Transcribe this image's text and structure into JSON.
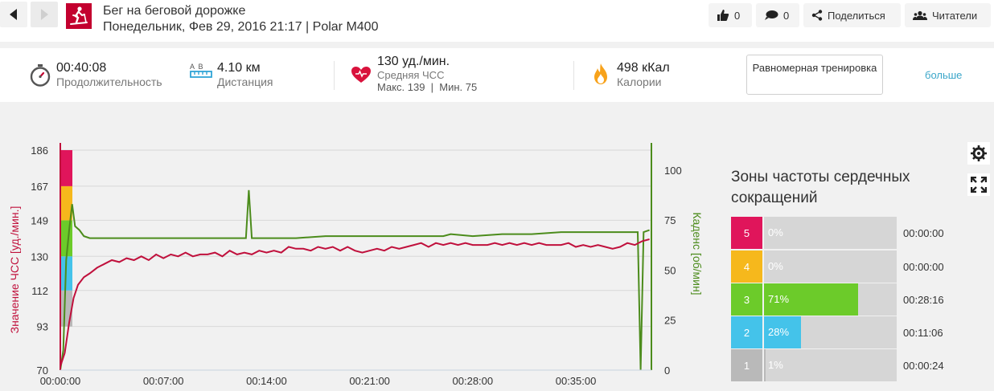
{
  "header": {
    "title": "Бег на беговой дорожке",
    "subtitle": "Понедельник, Фев 29, 2016 21:17 | Polar M400",
    "likes_count": "0",
    "comments_count": "0",
    "share_label": "Поделиться",
    "followers_label": "Читатели"
  },
  "summary": {
    "duration_value": "00:40:08",
    "duration_label": "Продолжительность",
    "distance_icon_text": "A  B",
    "distance_value": "4.10 км",
    "distance_label": "Дистанция",
    "hr_value": "130 уд./мин.",
    "hr_label": "Средняя ЧСС",
    "hr_minmax": "Макс. 139  |  Мин. 75",
    "calories_value": "498 кКал",
    "calories_label": "Калории",
    "workout_type": "Равномерная тренировка",
    "more_label": "больше"
  },
  "colors": {
    "heart_rate": "#c0103c",
    "cadence": "#4c8c1c",
    "zone5": "#e0155b",
    "zone4": "#f6b81c",
    "zone3": "#6ccb2a",
    "zone2": "#44c3ea",
    "zone1": "#b9b9b9"
  },
  "chart_data": {
    "type": "line",
    "xlabel": "",
    "x_ticks": [
      "00:00:00",
      "00:07:00",
      "00:14:00",
      "00:21:00",
      "00:28:00",
      "00:35:00"
    ],
    "x_tick_minutes": [
      0,
      7,
      14,
      21,
      28,
      35
    ],
    "x_range_minutes": [
      0,
      40.13
    ],
    "y_left": {
      "label": "Значение ЧСС [уд./мин.]",
      "ticks": [
        70,
        93,
        112,
        130,
        149,
        167,
        186
      ],
      "range": [
        70,
        186
      ]
    },
    "y_right": {
      "label": "Каденс [об/мин]",
      "ticks": [
        0,
        25,
        50,
        75,
        100
      ],
      "range": [
        0,
        110
      ]
    },
    "zone_band_bpm": [
      93,
      112,
      130,
      149,
      167,
      186
    ],
    "series": [
      {
        "name": "Значение ЧСС",
        "axis": "left",
        "points": [
          [
            0,
            72
          ],
          [
            0.3,
            79
          ],
          [
            0.6,
            95
          ],
          [
            0.9,
            108
          ],
          [
            1.2,
            115
          ],
          [
            1.6,
            119
          ],
          [
            2.0,
            121
          ],
          [
            2.5,
            124
          ],
          [
            3.0,
            126
          ],
          [
            3.5,
            128
          ],
          [
            4.0,
            127
          ],
          [
            4.5,
            129
          ],
          [
            5.0,
            128
          ],
          [
            5.5,
            130
          ],
          [
            6.0,
            128
          ],
          [
            6.5,
            131
          ],
          [
            7.0,
            129
          ],
          [
            7.5,
            131
          ],
          [
            8.0,
            130
          ],
          [
            8.5,
            132
          ],
          [
            9.0,
            130
          ],
          [
            9.5,
            131
          ],
          [
            10.0,
            131
          ],
          [
            10.5,
            132
          ],
          [
            11.0,
            130
          ],
          [
            11.5,
            133
          ],
          [
            12.0,
            131
          ],
          [
            12.5,
            132
          ],
          [
            13.0,
            131
          ],
          [
            13.5,
            133
          ],
          [
            14.0,
            132
          ],
          [
            14.5,
            133
          ],
          [
            15.0,
            132
          ],
          [
            15.5,
            135
          ],
          [
            16.0,
            134
          ],
          [
            16.5,
            134
          ],
          [
            17.0,
            133
          ],
          [
            17.5,
            135
          ],
          [
            18.0,
            134
          ],
          [
            18.5,
            135
          ],
          [
            19.0,
            133
          ],
          [
            19.5,
            135
          ],
          [
            20.0,
            133
          ],
          [
            20.5,
            132
          ],
          [
            21.0,
            133
          ],
          [
            21.5,
            134
          ],
          [
            22.0,
            133
          ],
          [
            22.5,
            135
          ],
          [
            23.0,
            134
          ],
          [
            23.5,
            135
          ],
          [
            24.0,
            136
          ],
          [
            24.5,
            137
          ],
          [
            25.0,
            135
          ],
          [
            25.5,
            137
          ],
          [
            26.0,
            136
          ],
          [
            26.5,
            137
          ],
          [
            27.0,
            136
          ],
          [
            27.5,
            137
          ],
          [
            28.0,
            136
          ],
          [
            28.5,
            136
          ],
          [
            29.0,
            136
          ],
          [
            29.5,
            137
          ],
          [
            30.0,
            136
          ],
          [
            30.5,
            137
          ],
          [
            31.0,
            136
          ],
          [
            31.5,
            137
          ],
          [
            32.0,
            136
          ],
          [
            32.5,
            137
          ],
          [
            33.0,
            136
          ],
          [
            33.5,
            136
          ],
          [
            34.0,
            136
          ],
          [
            34.5,
            137
          ],
          [
            35.0,
            135
          ],
          [
            35.5,
            136
          ],
          [
            36.0,
            135
          ],
          [
            36.5,
            136
          ],
          [
            37.0,
            135
          ],
          [
            37.5,
            134
          ],
          [
            38.0,
            135
          ],
          [
            38.5,
            137
          ],
          [
            39.0,
            136
          ],
          [
            39.5,
            138
          ],
          [
            40.0,
            139
          ]
        ]
      },
      {
        "name": "Каденс",
        "axis": "right",
        "points": [
          [
            0,
            0
          ],
          [
            0.2,
            10
          ],
          [
            0.4,
            55
          ],
          [
            0.6,
            70
          ],
          [
            0.8,
            83
          ],
          [
            1.0,
            72
          ],
          [
            1.3,
            70
          ],
          [
            1.6,
            67
          ],
          [
            2.0,
            66
          ],
          [
            4.0,
            66
          ],
          [
            6.0,
            66
          ],
          [
            8.0,
            66
          ],
          [
            10.0,
            66
          ],
          [
            12.0,
            66
          ],
          [
            12.6,
            66
          ],
          [
            12.8,
            90
          ],
          [
            13.0,
            66
          ],
          [
            14.0,
            66
          ],
          [
            16.0,
            66
          ],
          [
            18.0,
            67
          ],
          [
            20.0,
            67
          ],
          [
            22.0,
            67
          ],
          [
            24.0,
            67
          ],
          [
            26.0,
            67
          ],
          [
            26.5,
            68
          ],
          [
            28.0,
            67
          ],
          [
            30.0,
            68
          ],
          [
            32.0,
            68
          ],
          [
            34.0,
            69
          ],
          [
            36.0,
            69
          ],
          [
            38.0,
            69
          ],
          [
            39.2,
            69
          ],
          [
            39.4,
            0
          ],
          [
            39.6,
            69
          ],
          [
            40.0,
            70
          ]
        ]
      }
    ]
  },
  "zones": {
    "title": "Зоны частоты сердечных сокращений",
    "items": [
      {
        "num": "5",
        "pct": "0%",
        "fraction": 0.0,
        "time": "00:00:00"
      },
      {
        "num": "4",
        "pct": "0%",
        "fraction": 0.0,
        "time": "00:00:00"
      },
      {
        "num": "3",
        "pct": "71%",
        "fraction": 0.71,
        "time": "00:28:16"
      },
      {
        "num": "2",
        "pct": "28%",
        "fraction": 0.28,
        "time": "00:11:06"
      },
      {
        "num": "1",
        "pct": "1%",
        "fraction": 0.01,
        "time": "00:00:24"
      }
    ]
  }
}
